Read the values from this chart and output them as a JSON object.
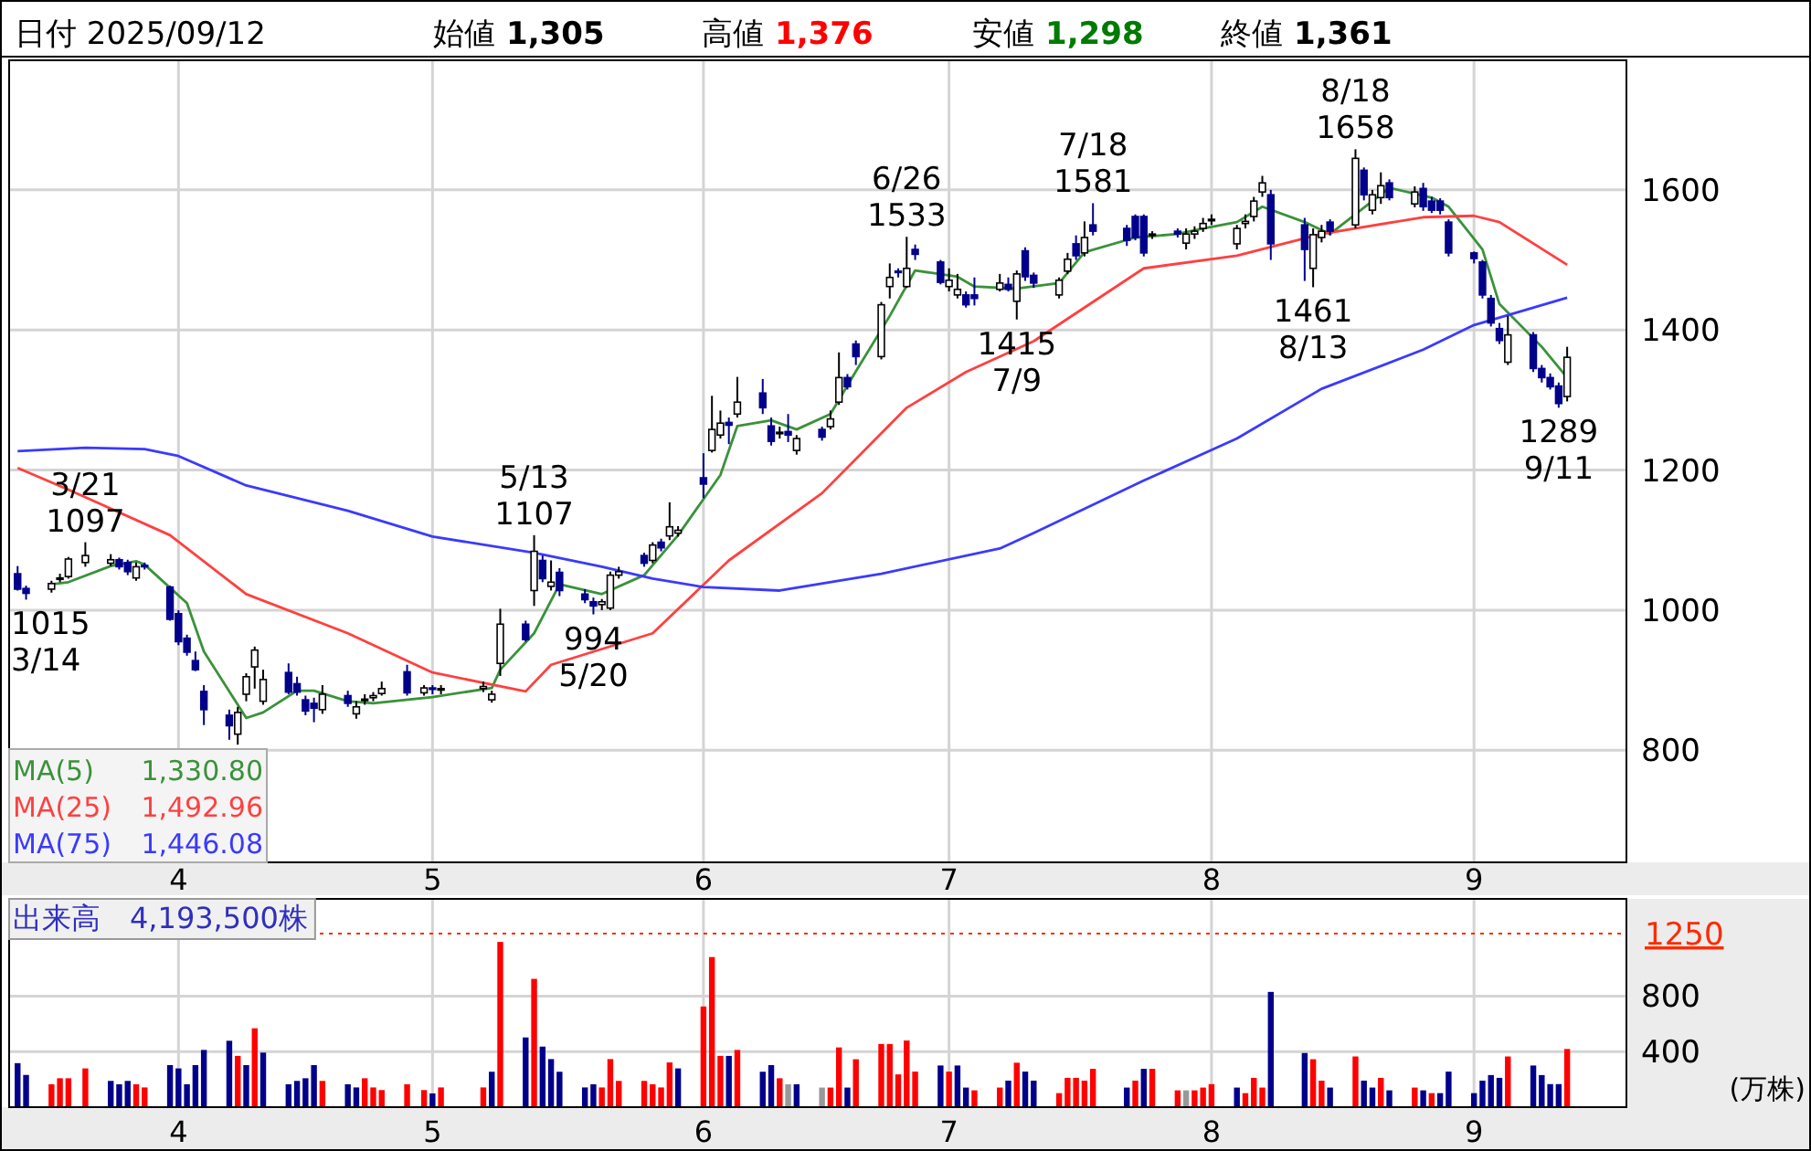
{
  "chart_data": [
    {
      "type": "candlestick",
      "grid": true,
      "legend": "bottom left",
      "x": [
        "2025-03-13",
        "2025-03-14",
        "2025-03-17",
        "2025-03-18",
        "2025-03-19",
        "2025-03-21",
        "2025-03-24",
        "2025-03-25",
        "2025-03-26",
        "2025-03-27",
        "2025-03-28",
        "2025-03-31",
        "2025-04-01",
        "2025-04-02",
        "2025-04-03",
        "2025-04-04",
        "2025-04-07",
        "2025-04-08",
        "2025-04-09",
        "2025-04-10",
        "2025-04-11",
        "2025-04-14",
        "2025-04-15",
        "2025-04-16",
        "2025-04-17",
        "2025-04-18",
        "2025-04-21",
        "2025-04-22",
        "2025-04-23",
        "2025-04-24",
        "2025-04-25",
        "2025-04-28",
        "2025-04-30",
        "2025-05-01",
        "2025-05-02",
        "2025-05-07",
        "2025-05-08",
        "2025-05-09",
        "2025-05-12",
        "2025-05-13",
        "2025-05-14",
        "2025-05-15",
        "2025-05-16",
        "2025-05-19",
        "2025-05-20",
        "2025-05-21",
        "2025-05-22",
        "2025-05-23",
        "2025-05-26",
        "2025-05-27",
        "2025-05-28",
        "2025-05-29",
        "2025-05-30",
        "2025-06-02",
        "2025-06-03",
        "2025-06-04",
        "2025-06-05",
        "2025-06-06",
        "2025-06-09",
        "2025-06-10",
        "2025-06-11",
        "2025-06-12",
        "2025-06-13",
        "2025-06-16",
        "2025-06-17",
        "2025-06-18",
        "2025-06-19",
        "2025-06-20",
        "2025-06-23",
        "2025-06-24",
        "2025-06-25",
        "2025-06-26",
        "2025-06-27",
        "2025-06-30",
        "2025-07-01",
        "2025-07-02",
        "2025-07-03",
        "2025-07-04",
        "2025-07-07",
        "2025-07-08",
        "2025-07-09",
        "2025-07-10",
        "2025-07-11",
        "2025-07-14",
        "2025-07-15",
        "2025-07-16",
        "2025-07-17",
        "2025-07-18",
        "2025-07-22",
        "2025-07-23",
        "2025-07-24",
        "2025-07-25",
        "2025-07-28",
        "2025-07-29",
        "2025-07-30",
        "2025-07-31",
        "2025-08-01",
        "2025-08-04",
        "2025-08-05",
        "2025-08-06",
        "2025-08-07",
        "2025-08-08",
        "2025-08-12",
        "2025-08-13",
        "2025-08-14",
        "2025-08-15",
        "2025-08-18",
        "2025-08-19",
        "2025-08-20",
        "2025-08-21",
        "2025-08-22",
        "2025-08-25",
        "2025-08-26",
        "2025-08-27",
        "2025-08-28",
        "2025-08-29",
        "2025-09-01",
        "2025-09-02",
        "2025-09-03",
        "2025-09-04",
        "2025-09-05",
        "2025-09-08",
        "2025-09-09",
        "2025-09-10",
        "2025-09-11",
        "2025-09-12"
      ],
      "ohlc": [
        [
          1052,
          1063,
          1028,
          1030
        ],
        [
          1031,
          1035,
          1015,
          1024
        ],
        [
          1030,
          1042,
          1025,
          1038
        ],
        [
          1046,
          1052,
          1040,
          1046
        ],
        [
          1048,
          1076,
          1045,
          1073
        ],
        [
          1068,
          1097,
          1062,
          1078
        ],
        [
          1067,
          1080,
          1063,
          1072
        ],
        [
          1072,
          1075,
          1058,
          1062
        ],
        [
          1068,
          1072,
          1050,
          1055
        ],
        [
          1046,
          1068,
          1042,
          1062
        ],
        [
          1064,
          1068,
          1058,
          1063
        ],
        [
          1033,
          1035,
          985,
          987
        ],
        [
          995,
          1000,
          950,
          955
        ],
        [
          960,
          965,
          935,
          940
        ],
        [
          928,
          941,
          913,
          915
        ],
        [
          884,
          893,
          836,
          858
        ],
        [
          850,
          858,
          815,
          835
        ],
        [
          823,
          862,
          808,
          854
        ],
        [
          880,
          910,
          870,
          905
        ],
        [
          919,
          948,
          888,
          943
        ],
        [
          870,
          915,
          865,
          901
        ],
        [
          911,
          924,
          880,
          883
        ],
        [
          895,
          905,
          878,
          883
        ],
        [
          872,
          878,
          850,
          856
        ],
        [
          867,
          875,
          840,
          860
        ],
        [
          858,
          893,
          852,
          880
        ],
        [
          878,
          885,
          862,
          867
        ],
        [
          852,
          870,
          845,
          862
        ],
        [
          872,
          880,
          865,
          873
        ],
        [
          875,
          883,
          870,
          878
        ],
        [
          881,
          898,
          878,
          888
        ],
        [
          912,
          922,
          878,
          882
        ],
        [
          882,
          893,
          878,
          889
        ],
        [
          889,
          893,
          880,
          888
        ],
        [
          886,
          893,
          880,
          888
        ],
        [
          888,
          898,
          883,
          891
        ],
        [
          872,
          885,
          868,
          880
        ],
        [
          924,
          1002,
          906,
          980
        ],
        [
          980,
          985,
          955,
          958
        ],
        [
          1028,
          1107,
          1006,
          1084
        ],
        [
          1071,
          1078,
          1040,
          1045
        ],
        [
          1034,
          1071,
          1028,
          1040
        ],
        [
          1054,
          1060,
          1020,
          1028
        ],
        [
          1023,
          1030,
          1010,
          1015
        ],
        [
          1012,
          1018,
          994,
          1006
        ],
        [
          1008,
          1016,
          1000,
          1012
        ],
        [
          1003,
          1055,
          1000,
          1050
        ],
        [
          1050,
          1062,
          1045,
          1055
        ],
        [
          1078,
          1082,
          1062,
          1067
        ],
        [
          1071,
          1097,
          1067,
          1093
        ],
        [
          1097,
          1102,
          1084,
          1089
        ],
        [
          1106,
          1154,
          1100,
          1119
        ],
        [
          1110,
          1120,
          1105,
          1114
        ],
        [
          1189,
          1224,
          1160,
          1180
        ],
        [
          1228,
          1306,
          1225,
          1258
        ],
        [
          1250,
          1285,
          1245,
          1267
        ],
        [
          1268,
          1275,
          1237,
          1264
        ],
        [
          1280,
          1333,
          1275,
          1297
        ],
        [
          1310,
          1330,
          1280,
          1289
        ],
        [
          1263,
          1275,
          1235,
          1241
        ],
        [
          1254,
          1262,
          1245,
          1254
        ],
        [
          1255,
          1280,
          1240,
          1250
        ],
        [
          1228,
          1250,
          1222,
          1245
        ],
        [
          1258,
          1262,
          1242,
          1247
        ],
        [
          1262,
          1285,
          1258,
          1273
        ],
        [
          1297,
          1368,
          1293,
          1332
        ],
        [
          1332,
          1337,
          1315,
          1319
        ],
        [
          1380,
          1385,
          1350,
          1362
        ],
        [
          1362,
          1440,
          1358,
          1436
        ],
        [
          1462,
          1495,
          1445,
          1475
        ],
        [
          1484,
          1488,
          1475,
          1483
        ],
        [
          1462,
          1533,
          1460,
          1488
        ],
        [
          1515,
          1522,
          1500,
          1508
        ],
        [
          1497,
          1500,
          1465,
          1468
        ],
        [
          1462,
          1488,
          1455,
          1471
        ],
        [
          1450,
          1480,
          1445,
          1458
        ],
        [
          1450,
          1455,
          1432,
          1436
        ],
        [
          1450,
          1475,
          1435,
          1445
        ],
        [
          1458,
          1480,
          1455,
          1467
        ],
        [
          1465,
          1475,
          1455,
          1458
        ],
        [
          1441,
          1485,
          1415,
          1480
        ],
        [
          1513,
          1518,
          1470,
          1476
        ],
        [
          1478,
          1482,
          1460,
          1467
        ],
        [
          1450,
          1475,
          1445,
          1471
        ],
        [
          1484,
          1510,
          1480,
          1501
        ],
        [
          1523,
          1535,
          1500,
          1506
        ],
        [
          1510,
          1555,
          1505,
          1532
        ],
        [
          1550,
          1581,
          1535,
          1541
        ],
        [
          1545,
          1550,
          1520,
          1528
        ],
        [
          1562,
          1565,
          1528,
          1532
        ],
        [
          1562,
          1565,
          1505,
          1510
        ],
        [
          1537,
          1541,
          1530,
          1537
        ],
        [
          1541,
          1545,
          1532,
          1537
        ],
        [
          1524,
          1545,
          1515,
          1537
        ],
        [
          1537,
          1548,
          1530,
          1541
        ],
        [
          1545,
          1560,
          1540,
          1552
        ],
        [
          1557,
          1565,
          1550,
          1558
        ],
        [
          1523,
          1550,
          1515,
          1545
        ],
        [
          1552,
          1565,
          1545,
          1555
        ],
        [
          1562,
          1590,
          1555,
          1584
        ],
        [
          1597,
          1620,
          1590,
          1610
        ],
        [
          1593,
          1600,
          1500,
          1523
        ],
        [
          1550,
          1560,
          1470,
          1515
        ],
        [
          1488,
          1545,
          1461,
          1536
        ],
        [
          1532,
          1550,
          1525,
          1541
        ],
        [
          1554,
          1558,
          1535,
          1541
        ],
        [
          1550,
          1658,
          1545,
          1645
        ],
        [
          1628,
          1632,
          1585,
          1593
        ],
        [
          1571,
          1600,
          1565,
          1593
        ],
        [
          1589,
          1625,
          1580,
          1606
        ],
        [
          1610,
          1615,
          1585,
          1589
        ],
        [
          1580,
          1605,
          1575,
          1597
        ],
        [
          1602,
          1610,
          1570,
          1576
        ],
        [
          1584,
          1590,
          1567,
          1571
        ],
        [
          1584,
          1588,
          1565,
          1571
        ],
        [
          1554,
          1558,
          1505,
          1510
        ],
        [
          1510,
          1512,
          1495,
          1502
        ],
        [
          1497,
          1500,
          1445,
          1450
        ],
        [
          1445,
          1450,
          1405,
          1410
        ],
        [
          1402,
          1410,
          1380,
          1385
        ],
        [
          1354,
          1420,
          1350,
          1393
        ],
        [
          1393,
          1397,
          1340,
          1345
        ],
        [
          1345,
          1350,
          1325,
          1332
        ],
        [
          1332,
          1338,
          1315,
          1319
        ],
        [
          1320,
          1325,
          1289,
          1295
        ],
        [
          1305,
          1376,
          1298,
          1361
        ]
      ],
      "series": [
        {
          "name": "MA(5)",
          "type": "line",
          "color": "#3a923a",
          "x": [
            "2025-03-17",
            "2025-03-19",
            "2025-03-24",
            "2025-03-27",
            "2025-03-28",
            "2025-04-02",
            "2025-04-04",
            "2025-04-09",
            "2025-04-11",
            "2025-04-15",
            "2025-04-17",
            "2025-04-21",
            "2025-04-24",
            "2025-05-01",
            "2025-05-08",
            "2025-05-09",
            "2025-05-13",
            "2025-05-16",
            "2025-05-21",
            "2025-05-26",
            "2025-05-30",
            "2025-06-04",
            "2025-06-06",
            "2025-06-10",
            "2025-06-13",
            "2025-06-17",
            "2025-06-20",
            "2025-06-24",
            "2025-06-27",
            "2025-07-02",
            "2025-07-04",
            "2025-07-09",
            "2025-07-14",
            "2025-07-17",
            "2025-07-23",
            "2025-07-28",
            "2025-07-31",
            "2025-08-04",
            "2025-08-07",
            "2025-08-12",
            "2025-08-15",
            "2025-08-20",
            "2025-08-22",
            "2025-08-27",
            "2025-08-29",
            "2025-09-02",
            "2025-09-04",
            "2025-09-09",
            "2025-09-12"
          ],
          "values": [
            1037,
            1040,
            1063,
            1070,
            1065,
            1010,
            941,
            846,
            854,
            885,
            885,
            870,
            867,
            876,
            889,
            915,
            967,
            1037,
            1023,
            1050,
            1107,
            1193,
            1263,
            1271,
            1258,
            1280,
            1341,
            1420,
            1485,
            1476,
            1462,
            1459,
            1467,
            1511,
            1532,
            1537,
            1545,
            1554,
            1576,
            1554,
            1537,
            1584,
            1603,
            1589,
            1576,
            1515,
            1437,
            1376,
            1332
          ]
        },
        {
          "name": "MA(25)",
          "type": "line",
          "color": "#ff4040",
          "x": [
            "2025-03-13",
            "2025-03-19",
            "2025-03-31",
            "2025-04-09",
            "2025-04-21",
            "2025-05-01",
            "2025-05-12",
            "2025-05-15",
            "2025-05-27",
            "2025-06-05",
            "2025-06-16",
            "2025-06-26",
            "2025-07-03",
            "2025-07-11",
            "2025-07-24",
            "2025-08-04",
            "2025-08-14",
            "2025-08-26",
            "2025-09-01",
            "2025-09-04",
            "2025-09-12"
          ],
          "values": [
            1203,
            1172,
            1107,
            1023,
            967,
            911,
            884,
            922,
            967,
            1071,
            1167,
            1289,
            1340,
            1384,
            1488,
            1506,
            1537,
            1561,
            1563,
            1554,
            1493
          ]
        },
        {
          "name": "MA(75)",
          "type": "line",
          "color": "#3a3aff",
          "x": [
            "2025-03-13",
            "2025-03-21",
            "2025-03-28",
            "2025-04-01",
            "2025-04-09",
            "2025-04-21",
            "2025-05-01",
            "2025-05-13",
            "2025-05-21",
            "2025-05-27",
            "2025-06-02",
            "2025-06-11",
            "2025-06-23",
            "2025-07-07",
            "2025-07-11",
            "2025-07-24",
            "2025-08-04",
            "2025-08-14",
            "2025-08-26",
            "2025-09-01",
            "2025-09-12"
          ],
          "values": [
            1227,
            1232,
            1230,
            1220,
            1178,
            1142,
            1105,
            1082,
            1062,
            1045,
            1033,
            1028,
            1052,
            1088,
            1110,
            1185,
            1245,
            1316,
            1372,
            1407,
            1446
          ]
        }
      ],
      "ylim": [
        640,
        1785
      ],
      "yticks": [
        800,
        1000,
        1200,
        1400,
        1600
      ],
      "xlim": [
        "2025-03-12",
        "2025-09-19"
      ],
      "xticks": [
        {
          "value": "2025-04-01",
          "label": "4"
        },
        {
          "value": "2025-05-01",
          "label": "5"
        },
        {
          "value": "2025-06-02",
          "label": "6"
        },
        {
          "value": "2025-07-01",
          "label": "7"
        },
        {
          "value": "2025-08-01",
          "label": "8"
        },
        {
          "value": "2025-09-01",
          "label": "9"
        }
      ],
      "annotations": [
        "日付 2025/09/12",
        "始値",
        "1,305",
        "高値",
        "1,376",
        "安値",
        "1,298",
        "終値",
        "1,361",
        "1,330.80",
        "1,492.96",
        "1,446.08",
        {
          "text": "3/21",
          "x": "2025-03-21",
          "y": 1097
        },
        {
          "text": "1097",
          "x": "2025-03-21",
          "y": 1097
        },
        {
          "text": "1015",
          "x": "2025-03-14",
          "y": 1015
        },
        {
          "text": "3/14",
          "x": "2025-03-14",
          "y": 1015
        },
        {
          "text": "5/13",
          "x": "2025-05-13",
          "y": 1107
        },
        {
          "text": "1107",
          "x": "2025-05-13",
          "y": 1107
        },
        {
          "text": "994",
          "x": "2025-05-20",
          "y": 994
        },
        {
          "text": "5/20",
          "x": "2025-05-20",
          "y": 994
        },
        {
          "text": "6/26",
          "x": "2025-06-26",
          "y": 1533
        },
        {
          "text": "1533",
          "x": "2025-06-26",
          "y": 1533
        },
        {
          "text": "7/18",
          "x": "2025-07-18",
          "y": 1581
        },
        {
          "text": "1581",
          "x": "2025-07-18",
          "y": 1581
        },
        {
          "text": "1415",
          "x": "2025-07-09",
          "y": 1415
        },
        {
          "text": "7/9",
          "x": "2025-07-09",
          "y": 1415
        },
        {
          "text": "8/18",
          "x": "2025-08-18",
          "y": 1658
        },
        {
          "text": "1658",
          "x": "2025-08-18",
          "y": 1658
        },
        {
          "text": "1461",
          "x": "2025-08-13",
          "y": 1461
        },
        {
          "text": "8/13",
          "x": "2025-08-13",
          "y": 1461
        },
        {
          "text": "1289",
          "x": "2025-09-11",
          "y": 1289
        },
        {
          "text": "9/11",
          "x": "2025-09-11",
          "y": 1289
        }
      ]
    },
    {
      "type": "bar",
      "grid": true,
      "title": "出来高　4,193,500株",
      "ylabel": "(万株)",
      "x": [
        "2025-03-13",
        "2025-03-14",
        "2025-03-17",
        "2025-03-18",
        "2025-03-19",
        "2025-03-21",
        "2025-03-24",
        "2025-03-25",
        "2025-03-26",
        "2025-03-27",
        "2025-03-28",
        "2025-03-31",
        "2025-04-01",
        "2025-04-02",
        "2025-04-03",
        "2025-04-04",
        "2025-04-07",
        "2025-04-08",
        "2025-04-09",
        "2025-04-10",
        "2025-04-11",
        "2025-04-14",
        "2025-04-15",
        "2025-04-16",
        "2025-04-17",
        "2025-04-18",
        "2025-04-21",
        "2025-04-22",
        "2025-04-23",
        "2025-04-24",
        "2025-04-25",
        "2025-04-28",
        "2025-04-30",
        "2025-05-01",
        "2025-05-02",
        "2025-05-07",
        "2025-05-08",
        "2025-05-09",
        "2025-05-12",
        "2025-05-13",
        "2025-05-14",
        "2025-05-15",
        "2025-05-16",
        "2025-05-19",
        "2025-05-20",
        "2025-05-21",
        "2025-05-22",
        "2025-05-23",
        "2025-05-26",
        "2025-05-27",
        "2025-05-28",
        "2025-05-29",
        "2025-05-30",
        "2025-06-02",
        "2025-06-03",
        "2025-06-04",
        "2025-06-05",
        "2025-06-06",
        "2025-06-09",
        "2025-06-10",
        "2025-06-11",
        "2025-06-12",
        "2025-06-13",
        "2025-06-16",
        "2025-06-17",
        "2025-06-18",
        "2025-06-19",
        "2025-06-20",
        "2025-06-23",
        "2025-06-24",
        "2025-06-25",
        "2025-06-26",
        "2025-06-27",
        "2025-06-30",
        "2025-07-01",
        "2025-07-02",
        "2025-07-03",
        "2025-07-04",
        "2025-07-07",
        "2025-07-08",
        "2025-07-09",
        "2025-07-10",
        "2025-07-11",
        "2025-07-14",
        "2025-07-15",
        "2025-07-16",
        "2025-07-17",
        "2025-07-18",
        "2025-07-22",
        "2025-07-23",
        "2025-07-24",
        "2025-07-25",
        "2025-07-28",
        "2025-07-29",
        "2025-07-30",
        "2025-07-31",
        "2025-08-01",
        "2025-08-04",
        "2025-08-05",
        "2025-08-06",
        "2025-08-07",
        "2025-08-08",
        "2025-08-12",
        "2025-08-13",
        "2025-08-14",
        "2025-08-15",
        "2025-08-18",
        "2025-08-19",
        "2025-08-20",
        "2025-08-21",
        "2025-08-22",
        "2025-08-25",
        "2025-08-26",
        "2025-08-27",
        "2025-08-28",
        "2025-08-29",
        "2025-09-01",
        "2025-09-02",
        "2025-09-03",
        "2025-09-04",
        "2025-09-05",
        "2025-09-08",
        "2025-09-09",
        "2025-09-10",
        "2025-09-11",
        "2025-09-12"
      ],
      "values": [
        317,
        232,
        165,
        208,
        208,
        279,
        189,
        165,
        189,
        165,
        142,
        303,
        279,
        165,
        303,
        412,
        478,
        369,
        303,
        568,
        393,
        165,
        189,
        208,
        303,
        189,
        165,
        142,
        208,
        142,
        123,
        165,
        123,
        99,
        142,
        142,
        255,
        1190,
        502,
        924,
        436,
        346,
        255,
        142,
        165,
        142,
        346,
        189,
        189,
        165,
        142,
        322,
        279,
        725,
        1081,
        369,
        369,
        412,
        255,
        303,
        208,
        165,
        165,
        141,
        141,
        430,
        141,
        345,
        455,
        455,
        236,
        480,
        256,
        300,
        256,
        300,
        141,
        121,
        141,
        191,
        320,
        256,
        191,
        101,
        211,
        211,
        191,
        276,
        141,
        191,
        276,
        276,
        121,
        121,
        121,
        141,
        166,
        141,
        101,
        211,
        141,
        830,
        390,
        345,
        191,
        141,
        365,
        191,
        141,
        211,
        121,
        141,
        121,
        101,
        101,
        256,
        101,
        191,
        231,
        211,
        365,
        300,
        231,
        166,
        166,
        419
      ],
      "colors": [
        "#00008b",
        "#00008b",
        "#ff0000",
        "#ff0000",
        "#ff0000",
        "#ff0000",
        "#00008b",
        "#00008b",
        "#00008b",
        "#ff0000",
        "#ff0000",
        "#00008b",
        "#00008b",
        "#00008b",
        "#00008b",
        "#00008b",
        "#00008b",
        "#ff0000",
        "#00008b",
        "#ff0000",
        "#00008b",
        "#00008b",
        "#00008b",
        "#00008b",
        "#00008b",
        "#ff0000",
        "#00008b",
        "#00008b",
        "#ff0000",
        "#ff0000",
        "#ff0000",
        "#ff0000",
        "#ff0000",
        "#00008b",
        "#ff0000",
        "#ff0000",
        "#00008b",
        "#ff0000",
        "#00008b",
        "#ff0000",
        "#00008b",
        "#00008b",
        "#00008b",
        "#00008b",
        "#00008b",
        "#ff0000",
        "#ff0000",
        "#ff0000",
        "#ff0000",
        "#ff0000",
        "#ff0000",
        "#ff0000",
        "#00008b",
        "#ff0000",
        "#ff0000",
        "#ff0000",
        "#00008b",
        "#ff0000",
        "#00008b",
        "#00008b",
        "#ff0000",
        "#999999",
        "#00008b",
        "#999999",
        "#ff0000",
        "#ff0000",
        "#00008b",
        "#ff0000",
        "#ff0000",
        "#ff0000",
        "#ff0000",
        "#ff0000",
        "#ff0000",
        "#00008b",
        "#ff0000",
        "#00008b",
        "#00008b",
        "#ff0000",
        "#ff0000",
        "#00008b",
        "#ff0000",
        "#00008b",
        "#00008b",
        "#ff0000",
        "#ff0000",
        "#ff0000",
        "#ff0000",
        "#ff0000",
        "#00008b",
        "#ff0000",
        "#00008b",
        "#ff0000",
        "#ff0000",
        "#999999",
        "#ff0000",
        "#ff0000",
        "#ff0000",
        "#00008b",
        "#ff0000",
        "#ff0000",
        "#ff0000",
        "#00008b",
        "#00008b",
        "#ff0000",
        "#ff0000",
        "#00008b",
        "#ff0000",
        "#00008b",
        "#00008b",
        "#ff0000",
        "#00008b",
        "#ff0000",
        "#00008b",
        "#ff0000",
        "#00008b",
        "#00008b",
        "#00008b",
        "#00008b",
        "#00008b",
        "#00008b",
        "#ff0000",
        "#00008b",
        "#00008b",
        "#00008b",
        "#00008b",
        "#ff0000"
      ],
      "ylim": [
        0,
        1500
      ],
      "yticks": [
        400,
        800
      ],
      "xlim": [
        "2025-03-12",
        "2025-09-19"
      ],
      "xticks": [
        {
          "value": "2025-04-01",
          "label": "4"
        },
        {
          "value": "2025-05-01",
          "label": "5"
        },
        {
          "value": "2025-06-02",
          "label": "6"
        },
        {
          "value": "2025-07-01",
          "label": "7"
        },
        {
          "value": "2025-08-01",
          "label": "8"
        },
        {
          "value": "2025-09-01",
          "label": "9"
        }
      ],
      "ref_lines": [
        {
          "axis": "y",
          "value": 1250,
          "label": "1250",
          "color": "#ff2a00",
          "line_style": "dotted"
        }
      ]
    }
  ]
}
